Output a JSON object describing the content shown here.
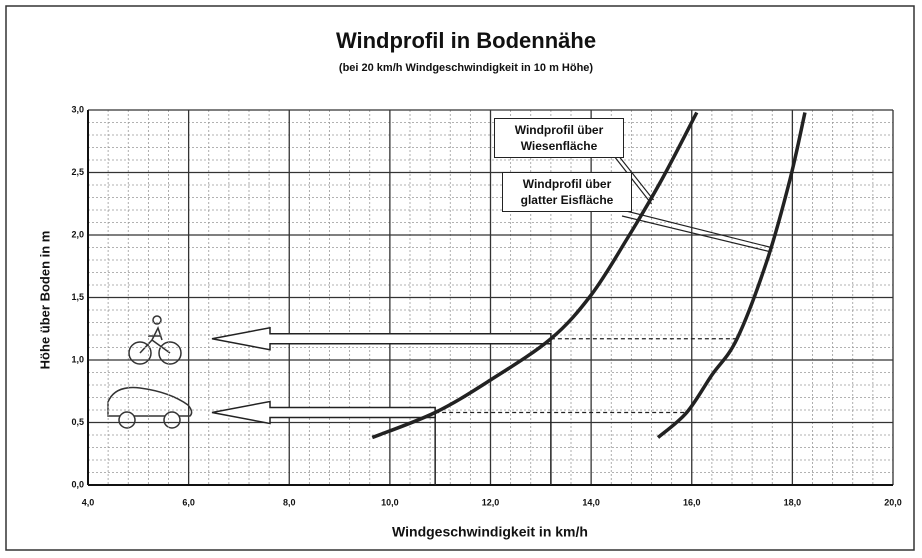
{
  "chart_data": {
    "type": "line",
    "title": "Windprofil in Bodennähe",
    "subtitle": "(bei 20 km/h Windgeschwindigkeit in 10 m Höhe)",
    "xlabel": "Windgeschwindigkeit in km/h",
    "ylabel": "Höhe über Boden in m",
    "xlim": [
      4,
      20
    ],
    "ylim": [
      0,
      3
    ],
    "xticks": [
      {
        "value": 4,
        "label": "4,0"
      },
      {
        "value": 6,
        "label": "6,0"
      },
      {
        "value": 8,
        "label": "8,0"
      },
      {
        "value": 10,
        "label": "10,0"
      },
      {
        "value": 12,
        "label": "12,0"
      },
      {
        "value": 14,
        "label": "14,0"
      },
      {
        "value": 16,
        "label": "16,0"
      },
      {
        "value": 18,
        "label": "18,0"
      },
      {
        "value": 20,
        "label": "20,0"
      }
    ],
    "yticks": [
      {
        "value": 0,
        "label": "0,0"
      },
      {
        "value": 0.5,
        "label": "0,5"
      },
      {
        "value": 1,
        "label": "1,0"
      },
      {
        "value": 1.5,
        "label": "1,5"
      },
      {
        "value": 2,
        "label": "2,0"
      },
      {
        "value": 2.5,
        "label": "2,5"
      },
      {
        "value": 3,
        "label": "3,0"
      }
    ],
    "grid": true,
    "series": [
      {
        "name": "Windprofil über Wiesenfläche",
        "color": "#222222",
        "x": [
          9.65,
          10.9,
          12.0,
          13.2,
          14.0,
          14.7,
          15.4,
          16.1
        ],
        "values": [
          0.38,
          0.58,
          0.84,
          1.17,
          1.52,
          1.96,
          2.44,
          2.98
        ]
      },
      {
        "name": "Windprofil über glatter Eisfläche",
        "color": "#222222",
        "x": [
          15.33,
          15.9,
          16.4,
          16.9,
          17.5,
          17.95,
          18.25
        ],
        "values": [
          0.38,
          0.58,
          0.88,
          1.17,
          1.8,
          2.44,
          2.98
        ]
      }
    ]
  }
}
